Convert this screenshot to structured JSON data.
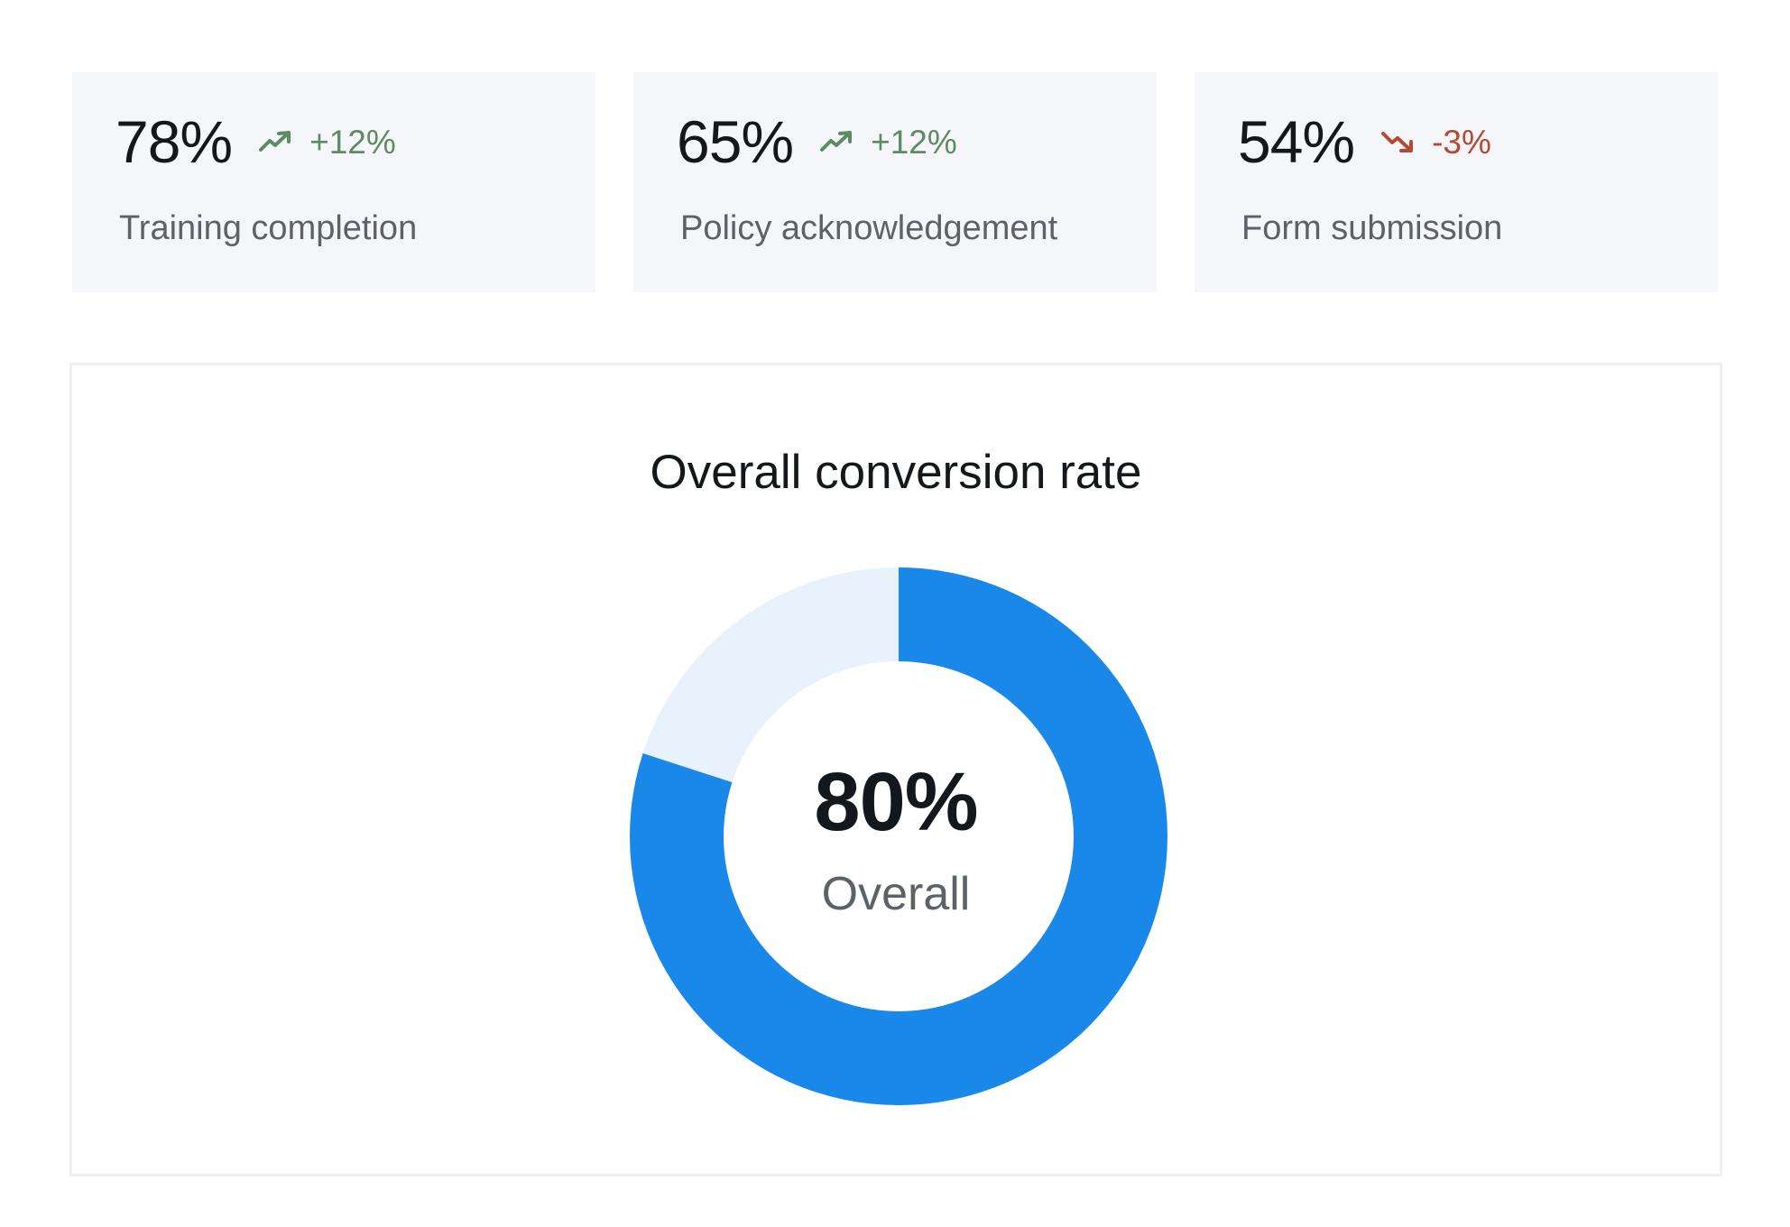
{
  "stats": [
    {
      "value": "78%",
      "trend": "up",
      "change": "+12%",
      "label": "Training completion"
    },
    {
      "value": "65%",
      "trend": "up",
      "change": "+12%",
      "label": "Policy acknowledgement"
    },
    {
      "value": "54%",
      "trend": "down",
      "change": "-3%",
      "label": "Form submission"
    }
  ],
  "icons": {
    "up": "trending-up-icon",
    "down": "trending-down-icon"
  },
  "colors": {
    "up": "#5e8b62",
    "down": "#b54a33",
    "accent": "#1a88e8",
    "track": "#e8f2fc",
    "card_bg": "#f4f6fa"
  },
  "chart": {
    "title": "Overall conversion rate",
    "center_value": "80%",
    "center_label": "Overall"
  },
  "chart_data": {
    "type": "pie",
    "title": "Overall conversion rate",
    "values": [
      80,
      20
    ],
    "colors": [
      "#1a88e8",
      "#e8f2fc"
    ],
    "center_text": "80%",
    "center_subtext": "Overall"
  }
}
